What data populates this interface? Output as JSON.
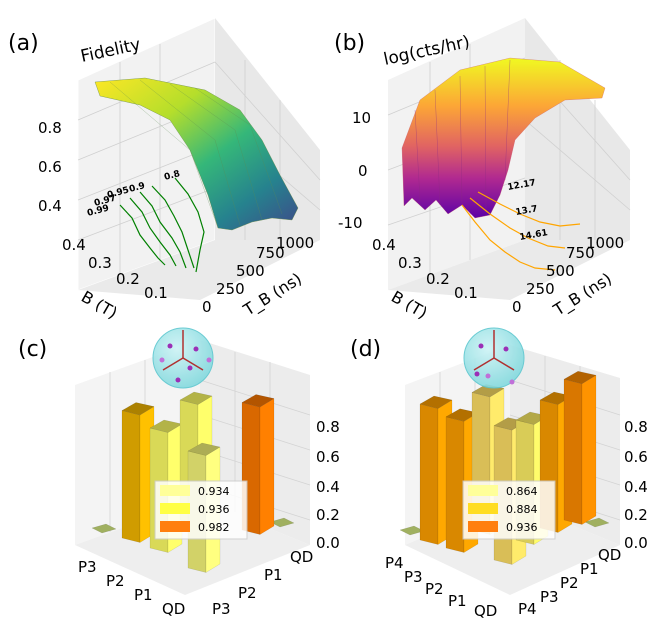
{
  "panels": {
    "a": {
      "label": "(a)",
      "ztitle": "Fidelity"
    },
    "b": {
      "label": "(b)",
      "ztitle": "log(cts/hr)"
    },
    "c": {
      "label": "(c)"
    },
    "d": {
      "label": "(d)"
    }
  },
  "chart_data": [
    {
      "type": "surface",
      "panel": "a",
      "title": "Fidelity",
      "xlabel": "B (T)",
      "ylabel": "T_B (ns)",
      "x_ticks": [
        "0.4",
        "0.3",
        "0.2",
        "0.1"
      ],
      "y_ticks": [
        "0",
        "250",
        "500",
        "750",
        "1000"
      ],
      "z_ticks": [
        "0.4",
        "0.6",
        "0.8"
      ],
      "xlim": [
        0.0,
        0.4
      ],
      "ylim": [
        0,
        1000
      ],
      "zlim": [
        0.3,
        0.95
      ],
      "colormap": "viridis",
      "contour_color": "#008000",
      "contour_levels": [
        "0.99",
        "0.97",
        "0.95",
        "0.9",
        "0.8"
      ],
      "surface_profile_T0": {
        "B": [
          0.0,
          0.1,
          0.2,
          0.3,
          0.4
        ],
        "fidelity": [
          0.92,
          0.92,
          0.91,
          0.9,
          0.88
        ]
      },
      "surface_profile_T1000": {
        "B": [
          0.0,
          0.1,
          0.2,
          0.3,
          0.4
        ],
        "fidelity": [
          0.32,
          0.34,
          0.42,
          0.55,
          0.7
        ]
      }
    },
    {
      "type": "surface",
      "panel": "b",
      "title": "log(cts/hr)",
      "xlabel": "B (T)",
      "ylabel": "T_B (ns)",
      "x_ticks": [
        "0.4",
        "0.3",
        "0.2",
        "0.1"
      ],
      "y_ticks": [
        "0",
        "250",
        "500",
        "750",
        "1000"
      ],
      "z_ticks": [
        "-10",
        "0",
        "10"
      ],
      "xlim": [
        0.0,
        0.4
      ],
      "ylim": [
        0,
        1000
      ],
      "zlim": [
        -12,
        16
      ],
      "colormap": "plasma",
      "contour_color": "#ffa500",
      "contour_levels": [
        "12.17",
        "13.7",
        "14.61"
      ]
    },
    {
      "type": "bar3d",
      "panel": "c",
      "row_labels": [
        "P3",
        "P2",
        "P1",
        "QD"
      ],
      "col_labels": [
        "QD",
        "P1",
        "P2",
        "P3"
      ],
      "z_ticks": [
        "0.0",
        "0.2",
        "0.4",
        "0.6",
        "0.8"
      ],
      "zlim": [
        0,
        1
      ],
      "diagonal_bars": [
        {
          "row": "P3",
          "col": "P3",
          "value": 0.934
        },
        {
          "row": "P2",
          "col": "P2",
          "value": 0.936
        },
        {
          "row": "P1",
          "col": "P1",
          "value": 0.982
        },
        {
          "row": "QD",
          "col": "QD",
          "value": 0.934
        }
      ],
      "bars": [
        {
          "value": 0.85,
          "color": "#f5b800"
        },
        {
          "value": 0.8,
          "color": "#ffff66"
        },
        {
          "value": 0.8,
          "color": "#ffff66"
        },
        {
          "value": 0.78,
          "color": "#f7f77a"
        },
        {
          "value": 0.85,
          "color": "#ff7a00"
        }
      ],
      "legend": [
        {
          "label": "0.934",
          "color": "#ffff99"
        },
        {
          "label": "0.936",
          "color": "#ffff44"
        },
        {
          "label": "0.982",
          "color": "#ff7f0e"
        }
      ]
    },
    {
      "type": "bar3d",
      "panel": "d",
      "row_labels": [
        "P4",
        "P3",
        "P2",
        "P1",
        "QD"
      ],
      "col_labels": [
        "QD",
        "P1",
        "P2",
        "P3",
        "P4"
      ],
      "z_ticks": [
        "0.0",
        "0.2",
        "0.4",
        "0.6",
        "0.8"
      ],
      "zlim": [
        0,
        1
      ],
      "diagonal_bars": [
        {
          "row": "P4",
          "col": "P4",
          "value": 0.864
        },
        {
          "row": "P3",
          "col": "P3",
          "value": 0.884
        },
        {
          "row": "P2",
          "col": "P2",
          "value": 0.936
        },
        {
          "row": "P1",
          "col": "P1",
          "value": 0.936
        },
        {
          "row": "QD",
          "col": "QD",
          "value": 0.864
        }
      ],
      "bars": [
        {
          "value": 0.85,
          "color": "#ffa000"
        },
        {
          "value": 0.82,
          "color": "#ffa000"
        },
        {
          "value": 0.86,
          "color": "#ffe066"
        },
        {
          "value": 0.84,
          "color": "#ffe066"
        },
        {
          "value": 0.75,
          "color": "#fff066"
        },
        {
          "value": 0.8,
          "color": "#ffa000"
        },
        {
          "value": 0.88,
          "color": "#ff8c00"
        }
      ],
      "legend": [
        {
          "label": "0.864",
          "color": "#ffff99"
        },
        {
          "label": "0.884",
          "color": "#ffdd22"
        },
        {
          "label": "0.936",
          "color": "#ff7f0e"
        }
      ]
    }
  ]
}
